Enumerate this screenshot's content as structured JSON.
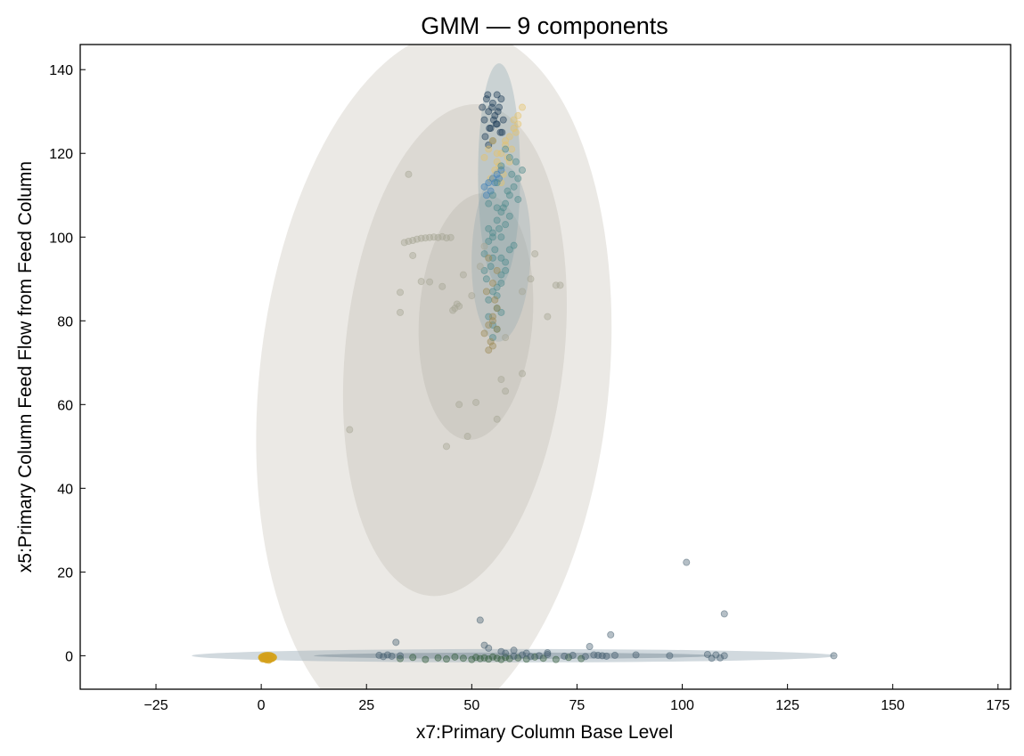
{
  "chart_data": {
    "type": "scatter",
    "title": "GMM — 9 components",
    "xlabel": "x7:Primary Column Base Level",
    "ylabel": "x5:Primary Column Feed Flow from Feed Column",
    "xlim": [
      -43,
      178
    ],
    "ylim": [
      -8,
      146
    ],
    "xticks": [
      "−25",
      "0",
      "25",
      "50",
      "75",
      "100",
      "125",
      "150",
      "175"
    ],
    "xtick_values": [
      -25,
      0,
      25,
      50,
      75,
      100,
      125,
      150,
      175
    ],
    "yticks": [
      "0",
      "20",
      "40",
      "60",
      "80",
      "100",
      "120",
      "140"
    ],
    "ytick_values": [
      0,
      20,
      40,
      60,
      80,
      100,
      120,
      140
    ],
    "grid": false,
    "legend": "none",
    "components": [
      {
        "mean": [
          41,
          65
        ],
        "width": 83,
        "height": 170,
        "angle": 6,
        "color": "#d7d4cc",
        "opacity": 0.5
      },
      {
        "mean": [
          46,
          73
        ],
        "width": 52,
        "height": 118,
        "angle": 6,
        "color": "#c9c6bd",
        "opacity": 0.45
      },
      {
        "mean": [
          51,
          81
        ],
        "width": 27,
        "height": 59,
        "angle": 4,
        "color": "#bfbcb3",
        "opacity": 0.45
      },
      {
        "mean": [
          57,
          96
        ],
        "width": 14,
        "height": 42,
        "angle": 2,
        "color": "#8fa7b0",
        "opacity": 0.3
      },
      {
        "mean": [
          56.5,
          115
        ],
        "width": 10,
        "height": 53,
        "angle": 0,
        "color": "#7f9fa8",
        "opacity": 0.3
      },
      {
        "mean": [
          60,
          0
        ],
        "width": 153,
        "height": 3.2,
        "angle": 0,
        "color": "#9aabb5",
        "opacity": 0.45
      },
      {
        "mean": [
          60,
          0
        ],
        "width": 95,
        "height": 1.5,
        "angle": 0,
        "color": "#5d7382",
        "opacity": 0.35
      },
      {
        "mean": [
          1.5,
          -0.4
        ],
        "width": 4.5,
        "height": 2.6,
        "angle": 0,
        "color": "#d4a010",
        "opacity": 0.9
      }
    ],
    "series": [
      {
        "color": "#d5a11b",
        "x": [
          0.3,
          0.8,
          1.2,
          1.6,
          2.0,
          2.4,
          1.0,
          1.8,
          0.6,
          2.2
        ],
        "y": [
          -0.8,
          -0.5,
          -1.0,
          -0.3,
          -0.9,
          -0.6,
          -0.2,
          -1.1,
          -0.4,
          0.0
        ]
      },
      {
        "color": "#2f5a38",
        "x": [
          33,
          36,
          39,
          42,
          44,
          46,
          48,
          50,
          51,
          52,
          53,
          54,
          55,
          56,
          57,
          58,
          59,
          61,
          63,
          65,
          67,
          70,
          73,
          76
        ],
        "y": [
          -0.7,
          -0.4,
          -0.9,
          -0.5,
          -0.8,
          -0.3,
          -0.6,
          -0.9,
          -0.4,
          -0.7,
          -0.5,
          -0.8,
          -0.3,
          -0.6,
          -0.9,
          -0.4,
          -0.7,
          -0.5,
          -0.8,
          -0.3,
          -0.6,
          -0.9,
          -0.4,
          -0.7
        ]
      },
      {
        "color": "#455e70",
        "x": [
          28,
          29,
          30,
          31,
          33,
          60,
          62,
          64,
          66,
          68,
          72,
          74,
          77,
          79,
          80,
          81,
          82,
          84,
          89,
          97,
          106,
          107,
          108,
          109,
          110,
          136,
          32,
          54,
          57,
          58,
          60,
          52,
          63,
          68,
          78,
          83,
          53,
          101,
          110
        ],
        "y": [
          0.1,
          -0.2,
          0.2,
          -0.1,
          0.0,
          -0.1,
          0.2,
          -0.2,
          0.0,
          0.3,
          -0.1,
          0.1,
          -0.2,
          0.2,
          0.1,
          0.0,
          -0.1,
          0.1,
          0.2,
          0.0,
          0.3,
          -0.6,
          0.2,
          -0.5,
          0.0,
          0.0,
          3.2,
          1.8,
          1.0,
          0.6,
          1.3,
          8.5,
          0.6,
          0.7,
          2.2,
          5.0,
          2.5,
          22.3,
          10.0
        ]
      },
      {
        "color": "#1e3d58",
        "x": [
          52.5,
          53.0,
          53.5,
          54.0,
          54.5,
          55.0,
          55.5,
          56.0,
          56.5,
          57.0,
          57.5,
          53.2,
          54.2,
          55.2,
          56.2,
          57.2,
          53.8,
          54.8,
          55.8,
          56.8,
          55.0,
          56.0,
          54.0
        ],
        "y": [
          131,
          128,
          133,
          130,
          126,
          132,
          129,
          127,
          131,
          133,
          128,
          124,
          126,
          128,
          130,
          125,
          134,
          131,
          127,
          125,
          123,
          134,
          122
        ]
      },
      {
        "color": "#e6c36c",
        "x": [
          53,
          54,
          55,
          56,
          57,
          58,
          59,
          60,
          61,
          62,
          55.5,
          56.5,
          57.5,
          58.5,
          59.5,
          60.5,
          54.5,
          57,
          59,
          61,
          56,
          58,
          60
        ],
        "y": [
          119,
          121,
          123,
          118,
          120,
          122,
          124,
          126,
          129,
          131,
          116,
          117,
          115,
          119,
          121,
          125,
          114,
          113,
          118,
          127,
          120,
          123,
          128
        ]
      },
      {
        "color": "#3f7fb6",
        "x": [
          53,
          54,
          55,
          56,
          57,
          54.5,
          55.5,
          56.5,
          53.5
        ],
        "y": [
          112,
          113,
          114,
          115,
          116,
          111,
          113,
          114,
          110
        ]
      },
      {
        "color": "#4e8a8c",
        "x": [
          53,
          54,
          55,
          56,
          57,
          58,
          59,
          60,
          61,
          62,
          54.5,
          55.5,
          56.5,
          57.5,
          58.5,
          59.5,
          60.5,
          53.5,
          55,
          57,
          59,
          61,
          56,
          58,
          60,
          54,
          55,
          57,
          58,
          56,
          54,
          55,
          56,
          57,
          58,
          59,
          55,
          56,
          57,
          54,
          56,
          58,
          55,
          57,
          56,
          54,
          53,
          55,
          57,
          59
        ],
        "y": [
          96,
          99,
          101,
          104,
          106,
          108,
          110,
          112,
          114,
          116,
          93,
          97,
          102,
          107,
          111,
          115,
          118,
          90,
          95,
          100,
          105,
          109,
          88,
          92,
          98,
          85,
          87,
          91,
          94,
          83,
          81,
          79,
          86,
          89,
          103,
          119,
          76,
          78,
          82,
          102,
          113,
          121,
          100,
          95,
          107,
          108,
          92,
          110,
          117,
          97
        ]
      },
      {
        "color": "#9c8a56",
        "x": [
          53,
          54,
          55,
          56,
          54.5,
          55.5,
          53.5,
          55,
          56,
          54,
          55,
          54,
          56,
          55
        ],
        "y": [
          77,
          79,
          81,
          83,
          75,
          85,
          87,
          89,
          92,
          73,
          74,
          95,
          78,
          80
        ]
      },
      {
        "color": "#a5a694",
        "x": [
          34,
          35,
          36,
          37,
          38,
          39,
          40,
          41,
          42,
          43,
          44,
          45,
          46,
          47,
          46.5,
          45.5,
          33,
          36,
          38,
          40,
          43,
          48,
          50,
          52,
          53,
          58,
          62,
          64,
          65,
          68,
          71,
          35,
          21,
          33,
          44,
          47,
          49,
          51,
          56,
          57,
          58,
          62,
          70
        ],
        "y": [
          98.7,
          99.0,
          99.2,
          99.5,
          99.7,
          99.8,
          99.9,
          100.0,
          99.9,
          100.1,
          99.8,
          99.9,
          83,
          83.5,
          84,
          82.5,
          86.8,
          95.6,
          89.4,
          89.3,
          88.2,
          91,
          86,
          93,
          97.8,
          76,
          87,
          90,
          96,
          81,
          88.5,
          115,
          54,
          82,
          50,
          60,
          52.4,
          60.5,
          56.5,
          66,
          63.2,
          67.4,
          88.5
        ]
      }
    ]
  }
}
